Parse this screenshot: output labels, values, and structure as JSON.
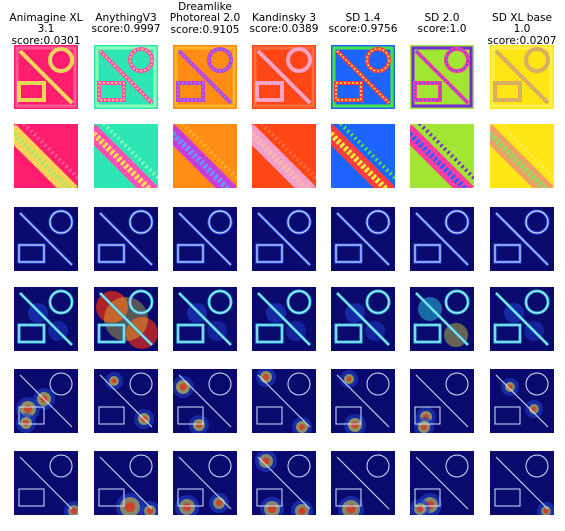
{
  "columns": [
    {
      "model": "Animagine XL 3.1",
      "score": "score:0.0301",
      "colors": [
        "#ff1e6e",
        "#ff5a96",
        "#ffd25a",
        "#b4e65a"
      ]
    },
    {
      "model": "AnythingV3",
      "score": "score:0.9997",
      "colors": [
        "#2ee6b4",
        "#8cffb4",
        "#ff4fb4",
        "#f0e14a"
      ]
    },
    {
      "model": "Dreamlike\nPhotoreal 2.0",
      "score": "score:0.9105",
      "colors": [
        "#ff8c14",
        "#ffb428",
        "#c83cdc",
        "#6496ff"
      ]
    },
    {
      "model": "Kandinsky 3",
      "score": "score:0.0389",
      "colors": [
        "#ff4614",
        "#ff6e3c",
        "#f0a0c8",
        "#ffb4b4"
      ]
    },
    {
      "model": "SD 1.4",
      "score": "score:0.9756",
      "colors": [
        "#1e64ff",
        "#46e646",
        "#ff3c3c",
        "#f0f03c"
      ]
    },
    {
      "model": "SD 2.0",
      "score": "score:1.0",
      "colors": [
        "#a0e632",
        "#7828dc",
        "#ff3ca0",
        "#3c5aff"
      ]
    },
    {
      "model": "SD XL base 1.0",
      "score": "score:0.0207",
      "colors": [
        "#ffe614",
        "#fff050",
        "#f0a064",
        "#8cdc64"
      ]
    }
  ],
  "rows": [
    {
      "kind": "segmentation-full"
    },
    {
      "kind": "segmentation-zoom"
    },
    {
      "kind": "edge-map"
    },
    {
      "kind": "attention-map"
    },
    {
      "kind": "heatmap-sparse"
    },
    {
      "kind": "heatmap-bottom"
    }
  ],
  "heatmap_colors": {
    "background": "#0a0a6e",
    "cool": "#1e3cc8",
    "mid": "#28c8dc",
    "warm": "#f0e632",
    "hot": "#e62814",
    "outline": "#d2e6ff"
  }
}
